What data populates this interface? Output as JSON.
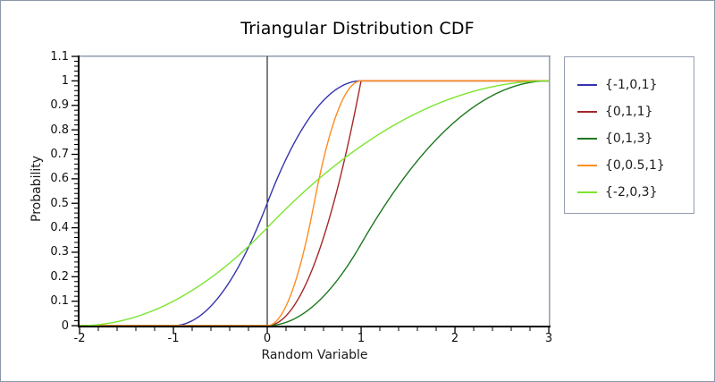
{
  "figure": {
    "background": "#ffffff",
    "border_color": "#8a97a7"
  },
  "chart_data": {
    "type": "line",
    "title": "Triangular Distribution CDF",
    "xlabel": "Random Variable",
    "ylabel": "Probability",
    "xlim": [
      -2,
      3
    ],
    "ylim": [
      0,
      1.1
    ],
    "grid": false,
    "legend_position": "right-outside",
    "axes": {
      "axis_color": "#000000",
      "frame_color": "#96a2b2",
      "origin_line_x": 0,
      "x_major_ticks": [
        -2,
        -1,
        0,
        1,
        2,
        3
      ],
      "x_tick_labels": [
        "-2",
        "-1",
        "0",
        "1",
        "2",
        "3"
      ],
      "x_minor_step": 0.2,
      "y_major_ticks": [
        0,
        0.1,
        0.2,
        0.3,
        0.4,
        0.5,
        0.6,
        0.7,
        0.8,
        0.9,
        1,
        1.1
      ],
      "y_tick_labels": [
        "0",
        "0.1",
        "0.2",
        "0.3",
        "0.4",
        "0.5",
        "0.6",
        "0.7",
        "0.8",
        "0.9",
        "1",
        "1.1"
      ],
      "y_minor_step": 0.02
    },
    "series": [
      {
        "name": "{-1,0,1}",
        "color": "#3434ac",
        "distribution": {
          "min": -1,
          "mode": 0,
          "max": 1
        },
        "points": {
          "x": [
            -2,
            -1.5,
            -1,
            -0.5,
            0,
            0.5,
            1,
            1.5,
            2,
            2.5,
            3
          ],
          "y": [
            0,
            0,
            0,
            0.125,
            0.5,
            0.875,
            1,
            1,
            1,
            1,
            1
          ]
        }
      },
      {
        "name": "{0,1,1}",
        "color": "#a52828",
        "distribution": {
          "min": 0,
          "mode": 1,
          "max": 1
        },
        "points": {
          "x": [
            -2,
            -1.5,
            -1,
            -0.5,
            0,
            0.5,
            1,
            1.5,
            2,
            2.5,
            3
          ],
          "y": [
            0,
            0,
            0,
            0,
            0,
            0.25,
            1,
            1,
            1,
            1,
            1
          ]
        }
      },
      {
        "name": "{0,1,3}",
        "color": "#1e771e",
        "distribution": {
          "min": 0,
          "mode": 1,
          "max": 3
        },
        "points": {
          "x": [
            -2,
            -1.5,
            -1,
            -0.5,
            0,
            0.5,
            1,
            1.5,
            2,
            2.5,
            3
          ],
          "y": [
            0,
            0,
            0,
            0,
            0,
            0.083,
            0.333,
            0.625,
            0.833,
            0.958,
            1
          ]
        }
      },
      {
        "name": "{0,0.5,1}",
        "color": "#ff8c1e",
        "distribution": {
          "min": 0,
          "mode": 0.5,
          "max": 1
        },
        "points": {
          "x": [
            -2,
            -1.5,
            -1,
            -0.5,
            0,
            0.5,
            1,
            1.5,
            2,
            2.5,
            3
          ],
          "y": [
            0,
            0,
            0,
            0,
            0,
            0.5,
            1,
            1,
            1,
            1,
            1
          ]
        }
      },
      {
        "name": "{-2,0,3}",
        "color": "#7ce52d",
        "distribution": {
          "min": -2,
          "mode": 0,
          "max": 3
        },
        "points": {
          "x": [
            -2,
            -1.5,
            -1,
            -0.5,
            0,
            0.5,
            1,
            1.5,
            2,
            2.5,
            3
          ],
          "y": [
            0,
            0.025,
            0.1,
            0.225,
            0.4,
            0.583,
            0.733,
            0.85,
            0.933,
            0.983,
            1
          ]
        }
      }
    ]
  }
}
